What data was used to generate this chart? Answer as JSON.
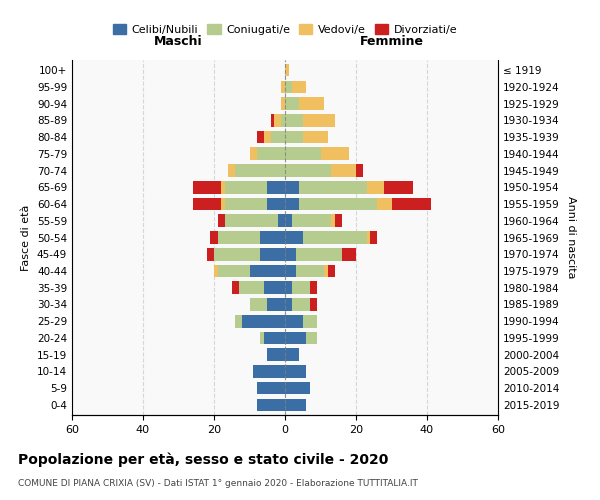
{
  "age_groups": [
    "0-4",
    "5-9",
    "10-14",
    "15-19",
    "20-24",
    "25-29",
    "30-34",
    "35-39",
    "40-44",
    "45-49",
    "50-54",
    "55-59",
    "60-64",
    "65-69",
    "70-74",
    "75-79",
    "80-84",
    "85-89",
    "90-94",
    "95-99",
    "100+"
  ],
  "birth_years": [
    "2015-2019",
    "2010-2014",
    "2005-2009",
    "2000-2004",
    "1995-1999",
    "1990-1994",
    "1985-1989",
    "1980-1984",
    "1975-1979",
    "1970-1974",
    "1965-1969",
    "1960-1964",
    "1955-1959",
    "1950-1954",
    "1945-1949",
    "1940-1944",
    "1935-1939",
    "1930-1934",
    "1925-1929",
    "1920-1924",
    "≤ 1919"
  ],
  "maschi": {
    "celibe": [
      8,
      8,
      9,
      5,
      6,
      12,
      5,
      6,
      10,
      7,
      7,
      2,
      5,
      5,
      0,
      0,
      0,
      0,
      0,
      0,
      0
    ],
    "coniugato": [
      0,
      0,
      0,
      0,
      1,
      2,
      5,
      7,
      9,
      13,
      12,
      15,
      12,
      12,
      14,
      8,
      4,
      1,
      0,
      0,
      0
    ],
    "vedovo": [
      0,
      0,
      0,
      0,
      0,
      0,
      0,
      0,
      1,
      0,
      0,
      0,
      1,
      1,
      2,
      2,
      2,
      2,
      1,
      1,
      0
    ],
    "divorziato": [
      0,
      0,
      0,
      0,
      0,
      0,
      0,
      2,
      0,
      2,
      2,
      2,
      8,
      8,
      0,
      0,
      2,
      1,
      0,
      0,
      0
    ]
  },
  "femmine": {
    "nubile": [
      6,
      7,
      6,
      4,
      6,
      5,
      2,
      2,
      3,
      3,
      5,
      2,
      4,
      4,
      0,
      0,
      0,
      0,
      0,
      0,
      0
    ],
    "coniugata": [
      0,
      0,
      0,
      0,
      3,
      4,
      5,
      5,
      8,
      13,
      18,
      11,
      22,
      19,
      13,
      10,
      5,
      5,
      4,
      2,
      0
    ],
    "vedova": [
      0,
      0,
      0,
      0,
      0,
      0,
      0,
      0,
      1,
      0,
      1,
      1,
      4,
      5,
      7,
      8,
      7,
      9,
      7,
      4,
      1
    ],
    "divorziata": [
      0,
      0,
      0,
      0,
      0,
      0,
      2,
      2,
      2,
      4,
      2,
      2,
      11,
      8,
      2,
      0,
      0,
      0,
      0,
      0,
      0
    ]
  },
  "colors": {
    "celibe": "#3a6ea5",
    "coniugato": "#b5cc8e",
    "vedovo": "#f0c060",
    "divorziato": "#cc2020"
  },
  "xlim": 60,
  "title": "Popolazione per età, sesso e stato civile - 2020",
  "subtitle": "COMUNE DI PIANA CRIXIA (SV) - Dati ISTAT 1° gennaio 2020 - Elaborazione TUTTITALIA.IT",
  "xlabel_left": "Maschi",
  "xlabel_right": "Femmine",
  "ylabel_left": "Fasce di età",
  "ylabel_right": "Anni di nascita",
  "legend_labels": [
    "Celibi/Nubili",
    "Coniugati/e",
    "Vedovi/e",
    "Divorziati/e"
  ]
}
